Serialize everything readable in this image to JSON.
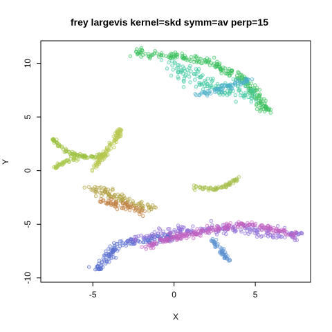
{
  "chart_data": {
    "type": "scatter",
    "title": "frey largevis kernel=skd symm=av perp=15",
    "xlabel": "X",
    "ylabel": "Y",
    "xlim": [
      -8.2,
      8.4
    ],
    "ylim": [
      -10.4,
      12.1
    ],
    "xticks": [
      -5,
      0,
      5
    ],
    "yticks": [
      -10,
      -5,
      0,
      5,
      10
    ],
    "grid": false,
    "legend": "none",
    "marker": "open-circle",
    "clusters": [
      {
        "name": "",
        "color": "#3cc060",
        "spread": 0.35,
        "path": [
          [
            -2.5,
            11.1
          ],
          [
            -1.0,
            10.8
          ],
          [
            0.5,
            10.6
          ],
          [
            2.0,
            10.2
          ],
          [
            3.5,
            9.2
          ],
          [
            4.5,
            8.2
          ],
          [
            5.2,
            6.8
          ],
          [
            5.5,
            5.8
          ],
          [
            6.0,
            5.5
          ]
        ]
      },
      {
        "name": "",
        "color": "#40c8a0",
        "spread": 0.7,
        "path": [
          [
            -0.2,
            10.0
          ],
          [
            1.0,
            9.0
          ],
          [
            2.2,
            8.0
          ],
          [
            3.5,
            7.3
          ],
          [
            4.8,
            7.0
          ]
        ]
      },
      {
        "name": "",
        "color": "#4ab0c8",
        "spread": 0.25,
        "path": [
          [
            1.5,
            7.0
          ],
          [
            2.8,
            7.6
          ],
          [
            4.6,
            8.5
          ]
        ]
      },
      {
        "name": "",
        "color": "#9cc040",
        "spread": 0.2,
        "path": [
          [
            -7.5,
            3.0
          ],
          [
            -6.8,
            2.0
          ],
          [
            -6.0,
            1.4
          ],
          [
            -5.0,
            1.3
          ],
          [
            -4.2,
            1.5
          ]
        ]
      },
      {
        "name": "",
        "color": "#a8c848",
        "spread": 0.15,
        "path": [
          [
            -7.4,
            0.2
          ],
          [
            -6.8,
            0.8
          ],
          [
            -6.0,
            1.2
          ]
        ]
      },
      {
        "name": "",
        "color": "#b8c850",
        "spread": 0.2,
        "path": [
          [
            -5.0,
            0.0
          ],
          [
            -4.5,
            1.2
          ],
          [
            -3.9,
            2.2
          ],
          [
            -3.5,
            3.2
          ],
          [
            -3.4,
            3.9
          ]
        ]
      },
      {
        "name": "",
        "color": "#b0a040",
        "spread": 0.45,
        "path": [
          [
            -5.2,
            -1.6
          ],
          [
            -4.3,
            -2.0
          ],
          [
            -3.3,
            -2.6
          ],
          [
            -2.2,
            -3.2
          ],
          [
            -1.3,
            -3.5
          ]
        ]
      },
      {
        "name": "",
        "color": "#c08040",
        "spread": 0.4,
        "path": [
          [
            -4.5,
            -2.8
          ],
          [
            -3.0,
            -3.4
          ],
          [
            -1.8,
            -3.8
          ]
        ]
      },
      {
        "name": "",
        "color": "#a8c050",
        "spread": 0.15,
        "path": [
          [
            1.3,
            -1.5
          ],
          [
            2.5,
            -1.8
          ],
          [
            3.4,
            -1.2
          ],
          [
            4.0,
            -0.6
          ]
        ]
      },
      {
        "name": "",
        "color": "#9070d8",
        "spread": 0.45,
        "path": [
          [
            -2.8,
            -6.6
          ],
          [
            -1.0,
            -6.0
          ],
          [
            1.0,
            -5.6
          ],
          [
            3.0,
            -5.4
          ],
          [
            5.0,
            -5.6
          ],
          [
            6.5,
            -6.0
          ],
          [
            7.8,
            -6.0
          ]
        ]
      },
      {
        "name": "",
        "color": "#5a70d0",
        "spread": 0.35,
        "path": [
          [
            -4.8,
            -9.3
          ],
          [
            -4.2,
            -8.2
          ],
          [
            -3.5,
            -7.0
          ],
          [
            -2.0,
            -6.6
          ],
          [
            0.0,
            -6.2
          ]
        ]
      },
      {
        "name": "",
        "color": "#c060c0",
        "spread": 0.3,
        "path": [
          [
            -1.8,
            -7.2
          ],
          [
            -0.6,
            -6.4
          ],
          [
            1.5,
            -5.8
          ],
          [
            3.0,
            -5.2
          ],
          [
            4.5,
            -5.0
          ],
          [
            6.5,
            -5.6
          ],
          [
            7.5,
            -5.9
          ]
        ]
      },
      {
        "name": "",
        "color": "#5a90d0",
        "spread": 0.2,
        "path": [
          [
            2.3,
            -6.4
          ],
          [
            3.0,
            -7.5
          ],
          [
            3.3,
            -8.3
          ]
        ]
      }
    ]
  }
}
